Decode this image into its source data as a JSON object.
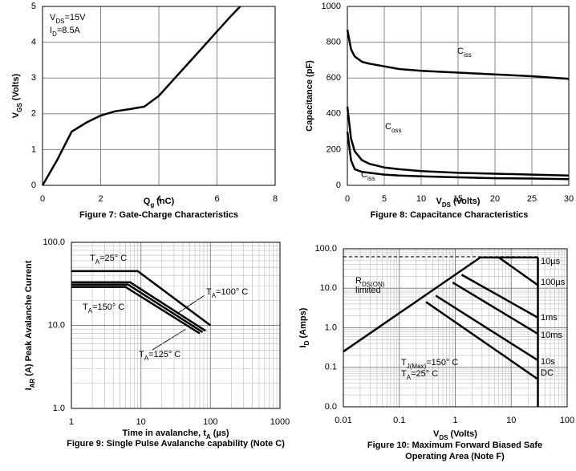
{
  "chart_data": [
    {
      "type": "line",
      "title": "Figure 7: Gate-Charge Characteristics",
      "xlabel": [
        "Q",
        "g",
        " (nC)"
      ],
      "ylabel": [
        "V",
        "GS",
        " (Volts)"
      ],
      "annotations": [
        [
          "V",
          "DS",
          "=15V"
        ],
        [
          "I",
          "D",
          "=8.5A"
        ]
      ],
      "x": [
        0,
        0.5,
        1,
        1.5,
        2,
        2.5,
        3,
        3.5,
        4,
        4.5,
        5,
        5.5,
        6,
        6.5,
        6.8
      ],
      "values": [
        0,
        0.7,
        1.5,
        1.75,
        1.95,
        2.07,
        2.13,
        2.2,
        2.5,
        2.95,
        3.4,
        3.85,
        4.3,
        4.75,
        5.0
      ],
      "color": "#000000",
      "xlim": [
        0,
        8
      ],
      "xticks": [
        0,
        2,
        4,
        6,
        8
      ],
      "ylim": [
        0,
        5
      ],
      "yticks": [
        0,
        1,
        2,
        3,
        4,
        5
      ],
      "grid": true
    },
    {
      "type": "line",
      "title": "Figure 8: Capacitance Characteristics",
      "xlabel": [
        "V",
        "DS",
        " (Volts)"
      ],
      "ylabel": "Capacitance (pF)",
      "series": [
        {
          "name": [
            "C",
            "iss"
          ],
          "color": "#000000",
          "x": [
            0,
            0.5,
            1,
            2,
            3,
            5,
            7,
            10,
            15,
            20,
            25,
            30
          ],
          "values": [
            870,
            760,
            720,
            690,
            680,
            665,
            650,
            640,
            630,
            620,
            610,
            595
          ]
        },
        {
          "name": [
            "C",
            "oss"
          ],
          "color": "#000000",
          "x": [
            0,
            0.5,
            1,
            2,
            3,
            5,
            7,
            10,
            15,
            20,
            25,
            30
          ],
          "values": [
            440,
            260,
            190,
            140,
            120,
            100,
            90,
            80,
            70,
            65,
            60,
            55
          ]
        },
        {
          "name": [
            "C",
            "iss"
          ],
          "color": "#000000",
          "x": [
            0,
            0.5,
            1,
            2,
            3,
            5,
            7,
            10,
            15,
            20,
            25,
            30
          ],
          "values": [
            300,
            140,
            90,
            75,
            70,
            60,
            55,
            50,
            45,
            40,
            38,
            35
          ]
        }
      ],
      "xlim": [
        0,
        30
      ],
      "xticks": [
        0,
        5,
        10,
        15,
        20,
        25,
        30
      ],
      "ylim": [
        0,
        1000
      ],
      "yticks": [
        0,
        200,
        400,
        600,
        800,
        1000
      ],
      "grid": true
    },
    {
      "type": "line",
      "title": "Figure 9: Single Pulse Avalanche capability (Note C)",
      "xlabel": [
        "Time in avalanche, t",
        "A",
        " (µs)"
      ],
      "ylabel": [
        "I",
        "AR",
        " (A) Peak Avalanche Current"
      ],
      "series": [
        {
          "name": [
            "T",
            "A",
            "=25° C"
          ],
          "color": "#000000",
          "x": [
            1,
            9,
            100
          ],
          "values": [
            45,
            45,
            10
          ]
        },
        {
          "name": [
            "T",
            "A",
            "=100° C"
          ],
          "color": "#000000",
          "x": [
            1,
            7,
            85
          ],
          "values": [
            33,
            33,
            8.6
          ]
        },
        {
          "name": [
            "T",
            "A",
            "=150° C"
          ],
          "color": "#000000",
          "x": [
            1,
            6,
            70
          ],
          "values": [
            29,
            29,
            8
          ]
        },
        {
          "name": [
            "T",
            "A",
            "=125° C"
          ],
          "color": "#000000",
          "x": [
            1,
            6.5,
            77
          ],
          "values": [
            31,
            31,
            8.3
          ]
        }
      ],
      "xscale": "log",
      "yscale": "log",
      "xlim": [
        1,
        1000
      ],
      "xticks": [
        1,
        10,
        100,
        1000
      ],
      "ylim": [
        1,
        100
      ],
      "yticks": [
        {
          "value": 1,
          "label": "1.0"
        },
        {
          "value": 10,
          "label": "10.0"
        },
        {
          "value": 100,
          "label": "100.0"
        }
      ],
      "grid": true
    },
    {
      "type": "line",
      "title": [
        "Figure 10: Maximum Forward Biased Safe",
        "Operating Area (Note F)"
      ],
      "xlabel": [
        "V",
        "DS",
        " (Volts)"
      ],
      "ylabel": [
        "I",
        "D",
        " (Amps)"
      ],
      "annotations": [
        [
          "R",
          "DS(ON)"
        ],
        "limited",
        [
          "T",
          "J(Max)",
          "=150° C"
        ],
        [
          "T",
          "A",
          "=25° C"
        ]
      ],
      "series": [
        {
          "name": "10µs",
          "color": "#000000",
          "x": [
            2.8,
            30
          ],
          "values": [
            60,
            60
          ]
        },
        {
          "name": "100µs",
          "color": "#000000",
          "x": [
            6,
            30
          ],
          "values": [
            60,
            12
          ]
        },
        {
          "name": "1ms",
          "color": "#000000",
          "x": [
            1.3,
            30
          ],
          "values": [
            22,
            1.8
          ]
        },
        {
          "name": "10ms",
          "color": "#000000",
          "x": [
            0.9,
            30
          ],
          "values": [
            14,
            0.7
          ]
        },
        {
          "name": "10s",
          "color": "#000000",
          "x": [
            0.45,
            30
          ],
          "values": [
            6.5,
            0.15
          ]
        },
        {
          "name": "DC",
          "color": "#000000",
          "x": [
            0.3,
            30
          ],
          "values": [
            4.5,
            0.05
          ]
        },
        {
          "color": "#000000",
          "x": [
            0.01,
            2.8
          ],
          "values": [
            0.25,
            60
          ]
        },
        {
          "color": "#000000",
          "x": [
            30,
            30
          ],
          "values": [
            60,
            0.01
          ]
        },
        {
          "color": "#000000",
          "dash": true,
          "x": [
            0.01,
            30
          ],
          "values": [
            63,
            63
          ]
        }
      ],
      "xscale": "log",
      "yscale": "log",
      "xlim": [
        0.01,
        100
      ],
      "xticks": [
        0.01,
        0.1,
        1,
        10,
        100
      ],
      "ylim": [
        0.01,
        100
      ],
      "yticks": [
        {
          "value": 0.01,
          "label": "0.0"
        },
        {
          "value": 0.1,
          "label": "0.1"
        },
        {
          "value": 1,
          "label": "1.0"
        },
        {
          "value": 10,
          "label": "10.0"
        },
        {
          "value": 100,
          "label": "100.0"
        }
      ],
      "grid": true
    }
  ]
}
